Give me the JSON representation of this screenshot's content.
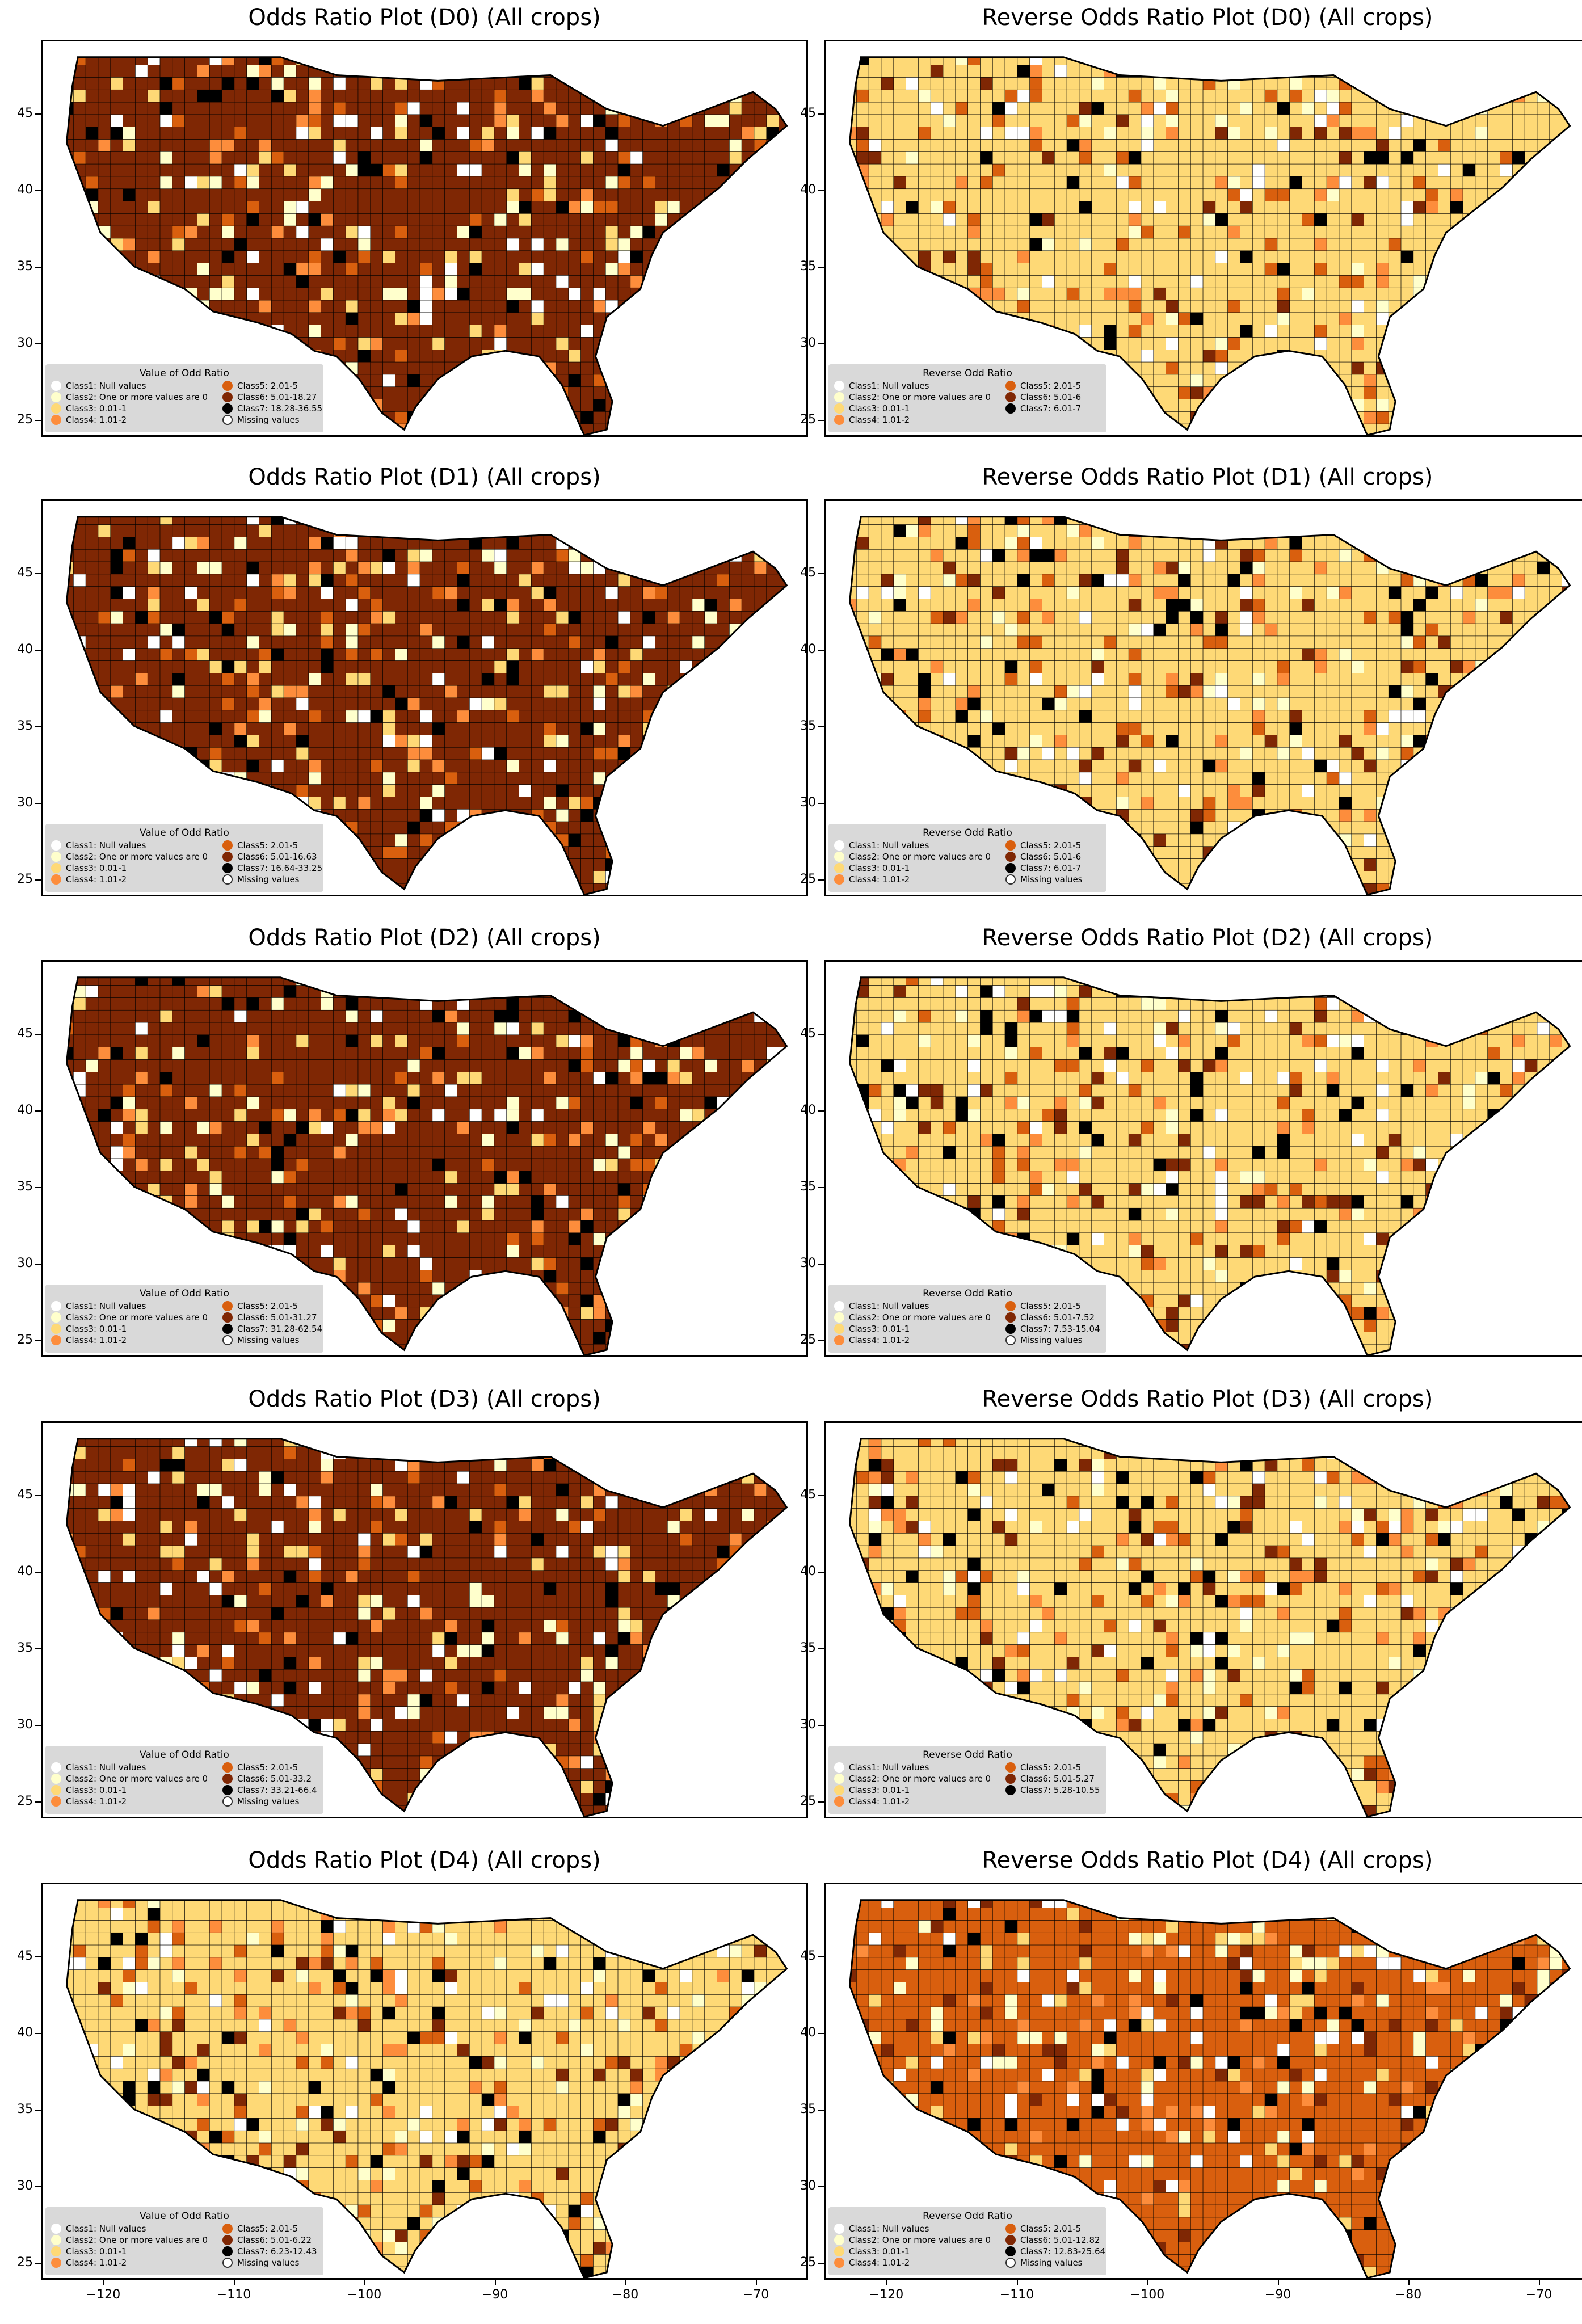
{
  "colors": {
    "class1": "#ffffff",
    "class2": "#ffffcc",
    "class3": "#fed976",
    "class4": "#fd8d3c",
    "class5": "#d95f0e",
    "class6": "#7f2704",
    "class7": "#000000",
    "missing": "#ffffff"
  },
  "axes": {
    "y_ticks": [
      "45",
      "40",
      "35",
      "30",
      "25"
    ],
    "x_ticks": [
      "−120",
      "−110",
      "−100",
      "−90",
      "−80",
      "−70"
    ]
  },
  "panels": [
    {
      "title": "Odds Ratio Plot (D0) (All crops)",
      "dominant": "class6",
      "legend": {
        "title": "Value of Odd Ratio",
        "left": [
          "Class1: Null values",
          "Class2: One or more values are 0",
          "Class3: 0.01-1",
          "Class4: 1.01-2"
        ],
        "right": [
          "Class5: 2.01-5",
          "Class6: 5.01-18.27",
          "Class7: 18.28-36.55",
          "Missing values"
        ]
      }
    },
    {
      "title": "Reverse Odds Ratio Plot (D0) (All crops)",
      "dominant": "class3",
      "legend": {
        "title": "Reverse Odd Ratio",
        "left": [
          "Class1: Null values",
          "Class2: One or more values are 0",
          "Class3: 0.01-1",
          "Class4: 1.01-2"
        ],
        "right": [
          "Class5: 2.01-5",
          "Class6: 5.01-6",
          "Class7: 6.01-7",
          ""
        ]
      }
    },
    {
      "title": "Odds Ratio Plot (D1) (All crops)",
      "dominant": "class6",
      "legend": {
        "title": "Value of Odd Ratio",
        "left": [
          "Class1: Null values",
          "Class2: One or more values are 0",
          "Class3: 0.01-1",
          "Class4: 1.01-2"
        ],
        "right": [
          "Class5: 2.01-5",
          "Class6: 5.01-16.63",
          "Class7: 16.64-33.25",
          "Missing values"
        ]
      }
    },
    {
      "title": "Reverse Odds Ratio Plot (D1) (All crops)",
      "dominant": "class3",
      "legend": {
        "title": "Reverse Odd Ratio",
        "left": [
          "Class1: Null values",
          "Class2: One or more values are 0",
          "Class3: 0.01-1",
          "Class4: 1.01-2"
        ],
        "right": [
          "Class5: 2.01-5",
          "Class6: 5.01-6",
          "Class7: 6.01-7",
          "Missing values"
        ]
      }
    },
    {
      "title": "Odds Ratio Plot (D2) (All crops)",
      "dominant": "class6",
      "legend": {
        "title": "Value of Odd Ratio",
        "left": [
          "Class1: Null values",
          "Class2: One or more values are 0",
          "Class3: 0.01-1",
          "Class4: 1.01-2"
        ],
        "right": [
          "Class5: 2.01-5",
          "Class6: 5.01-31.27",
          "Class7: 31.28-62.54",
          "Missing values"
        ]
      }
    },
    {
      "title": "Reverse Odds Ratio Plot (D2) (All crops)",
      "dominant": "class3",
      "legend": {
        "title": "Reverse Odd Ratio",
        "left": [
          "Class1: Null values",
          "Class2: One or more values are 0",
          "Class3: 0.01-1",
          "Class4: 1.01-2"
        ],
        "right": [
          "Class5: 2.01-5",
          "Class6: 5.01-7.52",
          "Class7: 7.53-15.04",
          "Missing values"
        ]
      }
    },
    {
      "title": "Odds Ratio Plot (D3) (All crops)",
      "dominant": "class6",
      "legend": {
        "title": "Value of Odd Ratio",
        "left": [
          "Class1: Null values",
          "Class2: One or more values are 0",
          "Class3: 0.01-1",
          "Class4: 1.01-2"
        ],
        "right": [
          "Class5: 2.01-5",
          "Class6: 5.01-33.2",
          "Class7: 33.21-66.4",
          "Missing values"
        ]
      }
    },
    {
      "title": "Reverse Odds Ratio Plot (D3) (All crops)",
      "dominant": "class3",
      "legend": {
        "title": "Reverse Odd Ratio",
        "left": [
          "Class1: Null values",
          "Class2: One or more values are 0",
          "Class3: 0.01-1",
          "Class4: 1.01-2"
        ],
        "right": [
          "Class5: 2.01-5",
          "Class6: 5.01-5.27",
          "Class7: 5.28-10.55",
          ""
        ]
      }
    },
    {
      "title": "Odds Ratio Plot (D4) (All crops)",
      "dominant": "class3",
      "legend": {
        "title": "Value of Odd Ratio",
        "left": [
          "Class1: Null values",
          "Class2: One or more values are 0",
          "Class3: 0.01-1",
          "Class4: 1.01-2"
        ],
        "right": [
          "Class5: 2.01-5",
          "Class6: 5.01-6.22",
          "Class7: 6.23-12.43",
          "Missing values"
        ]
      }
    },
    {
      "title": "Reverse Odds Ratio Plot (D4) (All crops)",
      "dominant": "class5",
      "legend": {
        "title": "Reverse Odd Ratio",
        "left": [
          "Class1: Null values",
          "Class2: One or more values are 0",
          "Class3: 0.01-1",
          "Class4: 1.01-2"
        ],
        "right": [
          "Class5: 2.01-5",
          "Class6: 5.01-12.82",
          "Class7: 12.83-25.64",
          "Missing values"
        ]
      }
    }
  ]
}
